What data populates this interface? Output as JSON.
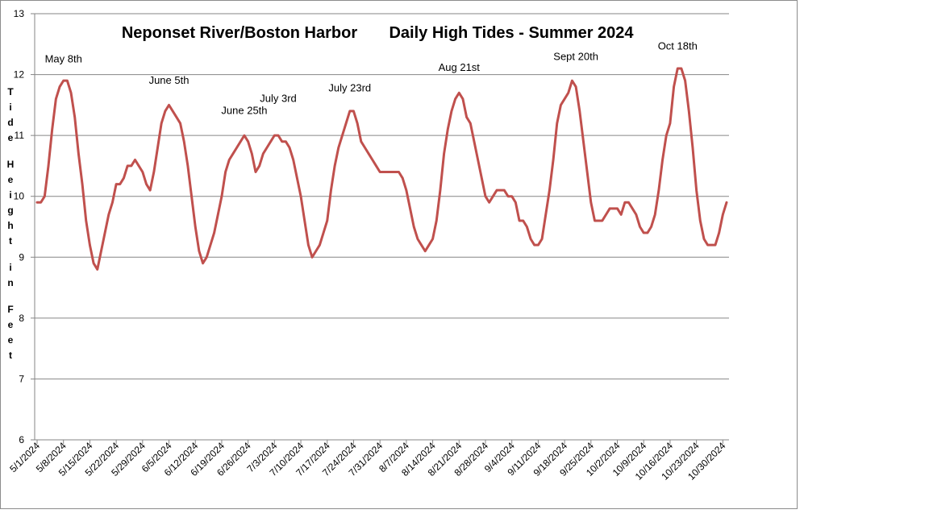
{
  "chart_data": {
    "type": "line",
    "title_left": "Neponset River/Boston Harbor",
    "title_right": "Daily High Tides - Summer 2024",
    "ylabel": "Tide Height in Feet",
    "xlabel": "",
    "ylim": [
      6,
      13
    ],
    "yticks": [
      6,
      7,
      8,
      9,
      10,
      11,
      12,
      13
    ],
    "grid": true,
    "legend": "none",
    "line_color": "#c0504d",
    "x_tick_labels": [
      "5/1/2024",
      "5/8/2024",
      "5/15/2024",
      "5/22/2024",
      "5/29/2024",
      "6/5/2024",
      "6/12/2024",
      "6/19/2024",
      "6/26/2024",
      "7/3/2024",
      "7/10/2024",
      "7/17/2024",
      "7/24/2024",
      "7/31/2024",
      "8/7/2024",
      "8/14/2024",
      "8/21/2024",
      "8/28/2024",
      "9/4/2024",
      "9/11/2024",
      "9/18/2024",
      "9/25/2024",
      "10/2/2024",
      "10/9/2024",
      "10/16/2024",
      "10/23/2024",
      "10/30/2024"
    ],
    "x": [
      "5/1/2024",
      "5/2/2024",
      "5/3/2024",
      "5/4/2024",
      "5/5/2024",
      "5/6/2024",
      "5/7/2024",
      "5/8/2024",
      "5/9/2024",
      "5/10/2024",
      "5/11/2024",
      "5/12/2024",
      "5/13/2024",
      "5/14/2024",
      "5/15/2024",
      "5/16/2024",
      "5/17/2024",
      "5/18/2024",
      "5/19/2024",
      "5/20/2024",
      "5/21/2024",
      "5/22/2024",
      "5/23/2024",
      "5/24/2024",
      "5/25/2024",
      "5/26/2024",
      "5/27/2024",
      "5/28/2024",
      "5/29/2024",
      "5/30/2024",
      "5/31/2024",
      "6/1/2024",
      "6/2/2024",
      "6/3/2024",
      "6/4/2024",
      "6/5/2024",
      "6/6/2024",
      "6/7/2024",
      "6/8/2024",
      "6/9/2024",
      "6/10/2024",
      "6/11/2024",
      "6/12/2024",
      "6/13/2024",
      "6/14/2024",
      "6/15/2024",
      "6/16/2024",
      "6/17/2024",
      "6/18/2024",
      "6/19/2024",
      "6/20/2024",
      "6/21/2024",
      "6/22/2024",
      "6/23/2024",
      "6/24/2024",
      "6/25/2024",
      "6/26/2024",
      "6/27/2024",
      "6/28/2024",
      "6/29/2024",
      "6/30/2024",
      "7/1/2024",
      "7/2/2024",
      "7/3/2024",
      "7/4/2024",
      "7/5/2024",
      "7/6/2024",
      "7/7/2024",
      "7/8/2024",
      "7/9/2024",
      "7/10/2024",
      "7/11/2024",
      "7/12/2024",
      "7/13/2024",
      "7/14/2024",
      "7/15/2024",
      "7/16/2024",
      "7/17/2024",
      "7/18/2024",
      "7/19/2024",
      "7/20/2024",
      "7/21/2024",
      "7/22/2024",
      "7/23/2024",
      "7/24/2024",
      "7/25/2024",
      "7/26/2024",
      "7/27/2024",
      "7/28/2024",
      "7/29/2024",
      "7/30/2024",
      "7/31/2024",
      "8/1/2024",
      "8/2/2024",
      "8/3/2024",
      "8/4/2024",
      "8/5/2024",
      "8/6/2024",
      "8/7/2024",
      "8/8/2024",
      "8/9/2024",
      "8/10/2024",
      "8/11/2024",
      "8/12/2024",
      "8/13/2024",
      "8/14/2024",
      "8/15/2024",
      "8/16/2024",
      "8/17/2024",
      "8/18/2024",
      "8/19/2024",
      "8/20/2024",
      "8/21/2024",
      "8/22/2024",
      "8/23/2024",
      "8/24/2024",
      "8/25/2024",
      "8/26/2024",
      "8/27/2024",
      "8/28/2024",
      "8/29/2024",
      "8/30/2024",
      "8/31/2024",
      "9/1/2024",
      "9/2/2024",
      "9/3/2024",
      "9/4/2024",
      "9/5/2024",
      "9/6/2024",
      "9/7/2024",
      "9/8/2024",
      "9/9/2024",
      "9/10/2024",
      "9/11/2024",
      "9/12/2024",
      "9/13/2024",
      "9/14/2024",
      "9/15/2024",
      "9/16/2024",
      "9/17/2024",
      "9/18/2024",
      "9/19/2024",
      "9/20/2024",
      "9/21/2024",
      "9/22/2024",
      "9/23/2024",
      "9/24/2024",
      "9/25/2024",
      "9/26/2024",
      "9/27/2024",
      "9/28/2024",
      "9/29/2024",
      "9/30/2024",
      "10/1/2024",
      "10/2/2024",
      "10/3/2024",
      "10/4/2024",
      "10/5/2024",
      "10/6/2024",
      "10/7/2024",
      "10/8/2024",
      "10/9/2024",
      "10/10/2024",
      "10/11/2024",
      "10/12/2024",
      "10/13/2024",
      "10/14/2024",
      "10/15/2024",
      "10/16/2024",
      "10/17/2024",
      "10/18/2024",
      "10/19/2024",
      "10/20/2024",
      "10/21/2024",
      "10/22/2024",
      "10/23/2024",
      "10/24/2024",
      "10/25/2024",
      "10/26/2024",
      "10/27/2024",
      "10/28/2024",
      "10/29/2024",
      "10/30/2024",
      "10/31/2024"
    ],
    "series": [
      {
        "values": [
          9.9,
          9.9,
          10.0,
          10.5,
          11.1,
          11.6,
          11.8,
          11.9,
          11.9,
          11.7,
          11.3,
          10.7,
          10.2,
          9.6,
          9.2,
          8.9,
          8.8,
          9.1,
          9.4,
          9.7,
          9.9,
          10.2,
          10.2,
          10.3,
          10.5,
          10.5,
          10.6,
          10.5,
          10.4,
          10.2,
          10.1,
          10.4,
          10.8,
          11.2,
          11.4,
          11.5,
          11.4,
          11.3,
          11.2,
          10.9,
          10.5,
          10.0,
          9.5,
          9.1,
          8.9,
          9.0,
          9.2,
          9.4,
          9.7,
          10.0,
          10.4,
          10.6,
          10.7,
          10.8,
          10.9,
          11.0,
          10.9,
          10.7,
          10.4,
          10.5,
          10.7,
          10.8,
          10.9,
          11.0,
          11.0,
          10.9,
          10.9,
          10.8,
          10.6,
          10.3,
          10.0,
          9.6,
          9.2,
          9.0,
          9.1,
          9.2,
          9.4,
          9.6,
          10.1,
          10.5,
          10.8,
          11.0,
          11.2,
          11.4,
          11.4,
          11.2,
          10.9,
          10.8,
          10.7,
          10.6,
          10.5,
          10.4,
          10.4,
          10.4,
          10.4,
          10.4,
          10.4,
          10.3,
          10.1,
          9.8,
          9.5,
          9.3,
          9.2,
          9.1,
          9.2,
          9.3,
          9.6,
          10.1,
          10.7,
          11.1,
          11.4,
          11.6,
          11.7,
          11.6,
          11.3,
          11.2,
          10.9,
          10.6,
          10.3,
          10.0,
          9.9,
          10.0,
          10.1,
          10.1,
          10.1,
          10.0,
          10.0,
          9.9,
          9.6,
          9.6,
          9.5,
          9.3,
          9.2,
          9.2,
          9.3,
          9.7,
          10.1,
          10.6,
          11.2,
          11.5,
          11.6,
          11.7,
          11.9,
          11.8,
          11.4,
          10.9,
          10.4,
          9.9,
          9.6,
          9.6,
          9.6,
          9.7,
          9.8,
          9.8,
          9.8,
          9.7,
          9.9,
          9.9,
          9.8,
          9.7,
          9.5,
          9.4,
          9.4,
          9.5,
          9.7,
          10.1,
          10.6,
          11.0,
          11.2,
          11.8,
          12.1,
          12.1,
          11.9,
          11.4,
          10.8,
          10.1,
          9.6,
          9.3,
          9.2,
          9.2,
          9.2,
          9.4,
          9.7,
          9.9
        ]
      }
    ],
    "annotations": [
      {
        "text": "May 8th",
        "x": "5/8/2024",
        "y": 12.2
      },
      {
        "text": "June 5th",
        "x": "6/5/2024",
        "y": 11.85
      },
      {
        "text": "June 25th",
        "x": "6/25/2024",
        "y": 11.35
      },
      {
        "text": "July 3rd",
        "x": "7/4/2024",
        "y": 11.55
      },
      {
        "text": "July 23rd",
        "x": "7/23/2024",
        "y": 11.72
      },
      {
        "text": "Aug 21st",
        "x": "8/21/2024",
        "y": 12.06
      },
      {
        "text": "Sept 20th",
        "x": "9/21/2024",
        "y": 12.24
      },
      {
        "text": "Oct 18th",
        "x": "10/18/2024",
        "y": 12.41
      }
    ]
  }
}
